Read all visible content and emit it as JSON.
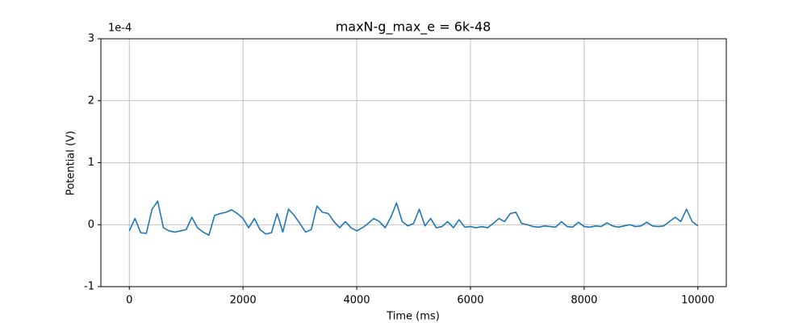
{
  "chart_data": {
    "type": "line",
    "title": "maxN-g_max_e = 6k-48",
    "xlabel": "Time (ms)",
    "ylabel": "Potential (V)",
    "y_offset_label": "1e-4",
    "xlim": [
      -500,
      10500
    ],
    "xticks": [
      0,
      2000,
      4000,
      6000,
      8000,
      10000
    ],
    "ylim": [
      -1,
      3
    ],
    "yticks": [
      -1,
      0,
      1,
      2,
      3
    ],
    "grid": true,
    "x": [
      0,
      100,
      200,
      300,
      400,
      500,
      600,
      700,
      800,
      900,
      1000,
      1100,
      1200,
      1300,
      1400,
      1500,
      1600,
      1700,
      1800,
      1900,
      2000,
      2100,
      2200,
      2300,
      2400,
      2500,
      2600,
      2700,
      2800,
      2900,
      3000,
      3100,
      3200,
      3300,
      3400,
      3500,
      3600,
      3700,
      3800,
      3900,
      4000,
      4100,
      4200,
      4300,
      4400,
      4500,
      4600,
      4700,
      4800,
      4900,
      5000,
      5100,
      5200,
      5300,
      5400,
      5500,
      5600,
      5700,
      5800,
      5900,
      6000,
      6100,
      6200,
      6300,
      6400,
      6500,
      6600,
      6700,
      6800,
      6900,
      7000,
      7100,
      7200,
      7300,
      7400,
      7500,
      7600,
      7700,
      7800,
      7900,
      8000,
      8100,
      8200,
      8300,
      8400,
      8500,
      8600,
      8700,
      8800,
      8900,
      9000,
      9100,
      9200,
      9300,
      9400,
      9500,
      9600,
      9700,
      9800,
      9900,
      10000
    ],
    "series": [
      {
        "color": "#1f77b4",
        "values": [
          -0.1,
          0.1,
          -0.13,
          -0.14,
          0.25,
          0.38,
          -0.05,
          -0.1,
          -0.12,
          -0.1,
          -0.08,
          0.12,
          -0.05,
          -0.12,
          -0.17,
          0.15,
          0.18,
          0.2,
          0.24,
          0.18,
          0.1,
          -0.05,
          0.1,
          -0.08,
          -0.15,
          -0.13,
          0.18,
          -0.12,
          0.25,
          0.15,
          0.02,
          -0.12,
          -0.08,
          0.3,
          0.2,
          0.18,
          0.05,
          -0.05,
          0.05,
          -0.05,
          -0.1,
          -0.05,
          0.02,
          0.1,
          0.05,
          -0.05,
          0.12,
          0.35,
          0.05,
          -0.02,
          0.02,
          0.25,
          -0.02,
          0.1,
          -0.05,
          -0.03,
          0.05,
          -0.05,
          0.08,
          -0.04,
          -0.03,
          -0.05,
          -0.03,
          -0.05,
          0.02,
          0.1,
          0.05,
          0.18,
          0.2,
          0.02,
          0,
          -0.03,
          -0.04,
          -0.02,
          -0.03,
          -0.04,
          0.05,
          -0.03,
          -0.04,
          0.04,
          -0.03,
          -0.04,
          -0.02,
          -0.03,
          0.03,
          -0.02,
          -0.04,
          -0.02,
          0,
          -0.03,
          -0.02,
          0.04,
          -0.02,
          -0.03,
          -0.02,
          0.05,
          0.12,
          0.05,
          0.25,
          0.05,
          -0.02
        ]
      }
    ]
  }
}
